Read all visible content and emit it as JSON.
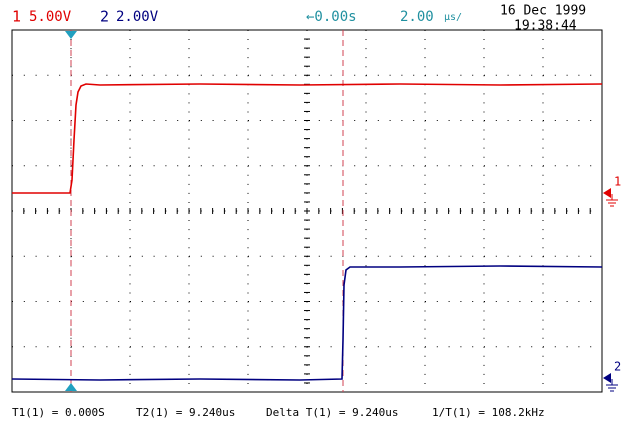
{
  "header": {
    "channel1": {
      "number": "1",
      "scale": "5.00V"
    },
    "channel2": {
      "number": "2",
      "scale": "2.00V"
    },
    "trigger_position": "←0.00s",
    "timebase": {
      "value": "2.00",
      "unit": "µs/"
    },
    "date": "16 Dec 1999",
    "time": "19:38:44"
  },
  "markers": {
    "channel1": "1",
    "channel2": "2"
  },
  "footer": {
    "measurements": [
      "T1(1) = 0.000S",
      "T2(1) = 9.240us",
      "Delta T(1) = 9.240us",
      "1/T(1) = 108.2kHz"
    ]
  }
}
